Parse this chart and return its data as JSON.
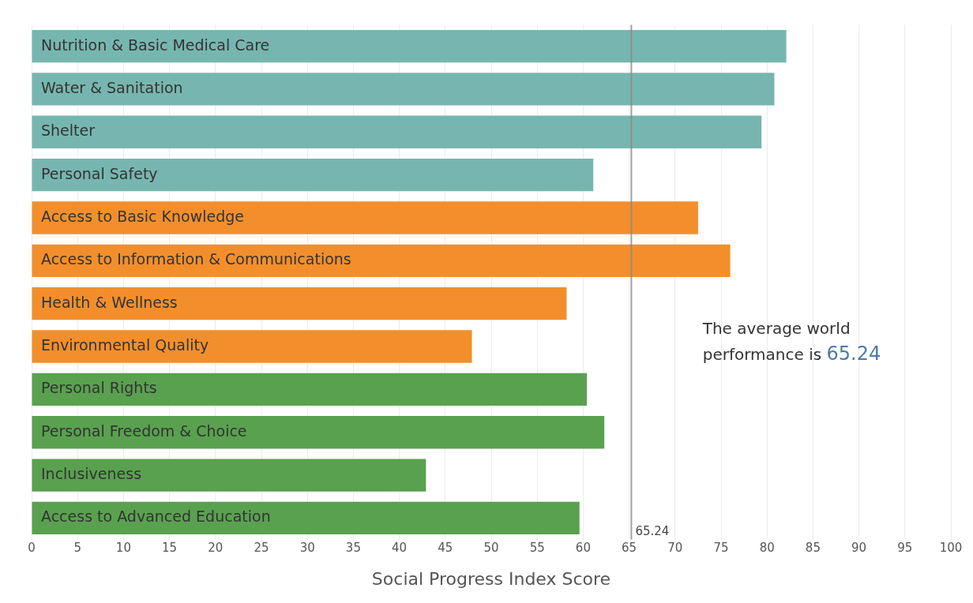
{
  "chart_data": {
    "type": "bar",
    "orientation": "horizontal",
    "xlabel": "Social Progress Index Score",
    "categories": [
      "Nutrition & Basic Medical Care",
      "Water & Sanitation",
      "Shelter",
      "Personal Safety",
      "Access to Basic Knowledge",
      "Access to Information & Communications",
      "Health & Wellness",
      "Environmental Quality",
      "Personal Rights",
      "Personal Freedom & Choice",
      "Inclusiveness",
      "Access to Advanced Education"
    ],
    "values": [
      82.1,
      80.8,
      79.4,
      61.1,
      72.5,
      76.0,
      58.2,
      47.9,
      60.4,
      62.3,
      42.9,
      59.6
    ],
    "colors": [
      "#77b6b0",
      "#77b6b0",
      "#77b6b0",
      "#77b6b0",
      "#f28f2c",
      "#f28f2c",
      "#f28f2c",
      "#f28f2c",
      "#59a14f",
      "#59a14f",
      "#59a14f",
      "#59a14f"
    ],
    "xlim": [
      0,
      100
    ],
    "xticks": [
      0,
      5,
      10,
      15,
      20,
      25,
      30,
      35,
      40,
      45,
      50,
      55,
      60,
      65,
      70,
      75,
      80,
      85,
      90,
      95,
      100
    ],
    "grid": "x",
    "legend": false,
    "ref_lines": [
      {
        "axis": "x",
        "value": 65.24,
        "label": "65.24",
        "color": "#888888"
      }
    ],
    "annotations": [
      "The average world performance is 65.24"
    ]
  }
}
